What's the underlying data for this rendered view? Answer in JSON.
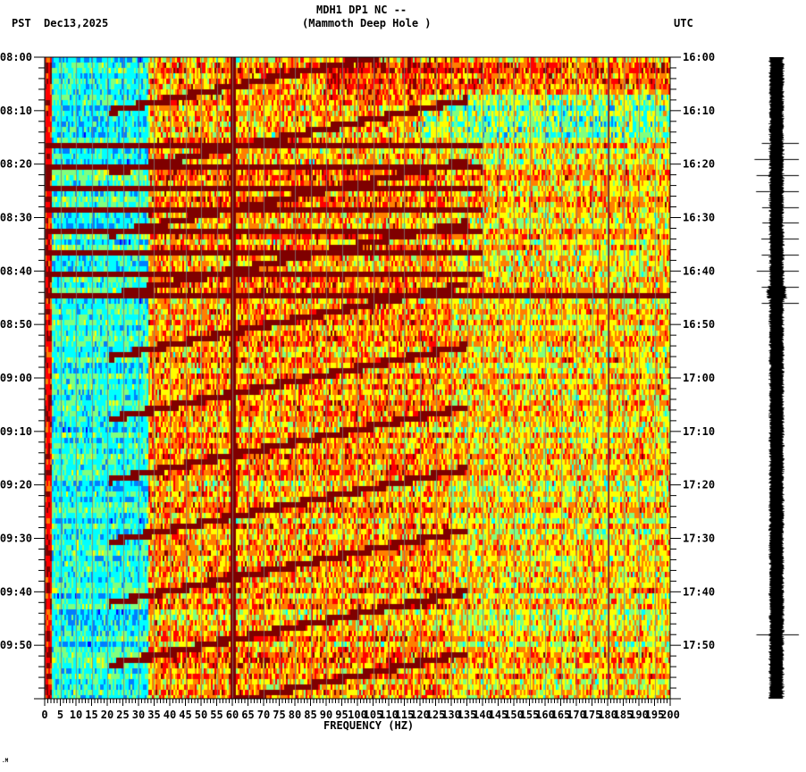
{
  "header": {
    "station": "MDH1 DP1 NC --",
    "location": "(Mammoth Deep Hole )",
    "left_tz": "PST",
    "date": "Dec13,2025",
    "right_tz": "UTC"
  },
  "footer": {
    "mark": ".M"
  },
  "chart_data": {
    "type": "heatmap",
    "title": "MDH1 DP1 NC -- (Mammoth Deep Hole )",
    "xlabel": "FREQUENCY (HZ)",
    "ylabel_left": "PST",
    "ylabel_right": "UTC",
    "xlim": [
      0,
      200
    ],
    "x_ticks": [
      0,
      5,
      10,
      15,
      20,
      25,
      30,
      35,
      40,
      45,
      50,
      55,
      60,
      65,
      70,
      75,
      80,
      85,
      90,
      95,
      100,
      105,
      110,
      115,
      120,
      125,
      130,
      135,
      140,
      145,
      150,
      155,
      160,
      165,
      170,
      175,
      180,
      185,
      190,
      195,
      200
    ],
    "y_ticks_left": [
      "08:00",
      "08:10",
      "08:20",
      "08:30",
      "08:40",
      "08:50",
      "09:00",
      "09:10",
      "09:20",
      "09:30",
      "09:40",
      "09:50"
    ],
    "y_ticks_right": [
      "16:00",
      "16:10",
      "16:20",
      "16:30",
      "16:40",
      "16:50",
      "17:00",
      "17:10",
      "17:20",
      "17:30",
      "17:40",
      "17:50"
    ],
    "time_range_minutes": 120,
    "colormap": [
      "#00007f",
      "#0000ff",
      "#007fff",
      "#00ffff",
      "#7fff7f",
      "#ffff00",
      "#ff7f00",
      "#ff0000",
      "#7f0000"
    ],
    "persistent_lines_hz": [
      60,
      180
    ],
    "broadband_event_pst": "08:44",
    "notes": "Low-frequency (<35 Hz) energy low (blue/cyan) from 08:00-09:55; repeated upward-sweeping dark-red harmonic arcs between 20-130 Hz; strong 60 Hz line throughout; horizontal banding 08:16-08:46."
  },
  "seismogram": {
    "label": "waveform trace",
    "tick_marks_pst": [
      "08:16",
      "08:19",
      "08:22",
      "08:25",
      "08:28",
      "08:31",
      "08:34",
      "08:37",
      "08:40",
      "08:43",
      "08:46",
      "09:48"
    ]
  }
}
